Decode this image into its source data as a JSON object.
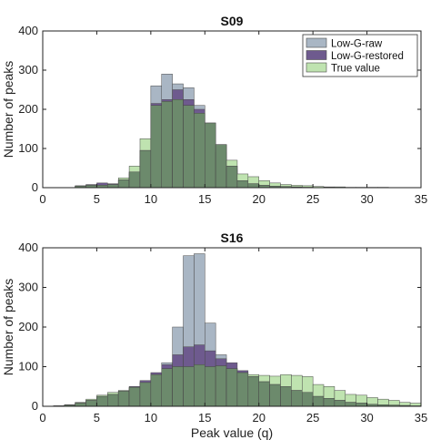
{
  "colors": {
    "raw": "#a9b6c4",
    "restored": "#6e5a8e",
    "true": "#bfe3b0",
    "overlap": "#6c8a6c",
    "edge": "#4a4a4a"
  },
  "chart_data": [
    {
      "type": "bar",
      "title": "S09",
      "xlabel": "",
      "ylabel": "Number of peaks",
      "xlim": [
        0,
        35
      ],
      "ylim": [
        0,
        400
      ],
      "xticks": [
        0,
        5,
        10,
        15,
        20,
        25,
        30,
        35
      ],
      "yticks": [
        0,
        100,
        200,
        300,
        400
      ],
      "grid": false,
      "legend_position": "top-right",
      "legend": [
        "Low-G-raw",
        "Low-G-restored",
        "True value"
      ],
      "bin_width": 1,
      "bin_start": 0,
      "series": [
        {
          "name": "Low-G-raw",
          "values": [
            0,
            0,
            0,
            3,
            5,
            6,
            6,
            20,
            35,
            80,
            260,
            290,
            265,
            255,
            210,
            165,
            110,
            55,
            18,
            8,
            4,
            2,
            1,
            1,
            0,
            0,
            0,
            0,
            0,
            0,
            0,
            0,
            0,
            0,
            0
          ]
        },
        {
          "name": "Low-G-restored",
          "values": [
            0,
            0,
            0,
            5,
            8,
            12,
            10,
            18,
            40,
            95,
            215,
            225,
            250,
            225,
            200,
            160,
            90,
            45,
            18,
            10,
            6,
            4,
            3,
            2,
            1,
            0,
            1,
            0,
            0,
            0,
            0,
            0,
            0,
            0,
            0
          ]
        },
        {
          "name": "True value",
          "values": [
            0,
            0,
            0,
            4,
            6,
            6,
            8,
            25,
            55,
            125,
            210,
            220,
            225,
            210,
            190,
            165,
            110,
            70,
            35,
            28,
            18,
            12,
            8,
            6,
            5,
            3,
            2,
            2,
            1,
            1,
            1,
            1,
            0,
            0,
            0
          ]
        }
      ]
    },
    {
      "type": "bar",
      "title": "S16",
      "xlabel": "Peak value (q)",
      "ylabel": "Number of peaks",
      "xlim": [
        0,
        35
      ],
      "ylim": [
        0,
        400
      ],
      "xticks": [
        0,
        5,
        10,
        15,
        20,
        25,
        30,
        35
      ],
      "yticks": [
        0,
        100,
        200,
        300,
        400
      ],
      "grid": false,
      "legend_position": "",
      "bin_width": 1,
      "bin_start": 0,
      "series": [
        {
          "name": "Low-G-raw",
          "values": [
            0,
            1,
            4,
            8,
            15,
            25,
            30,
            35,
            45,
            50,
            70,
            110,
            200,
            380,
            385,
            210,
            130,
            90,
            60,
            35,
            25,
            20,
            15,
            10,
            8,
            5,
            4,
            3,
            2,
            2,
            1,
            1,
            0,
            0,
            0
          ]
        },
        {
          "name": "Low-G-restored",
          "values": [
            0,
            1,
            3,
            8,
            12,
            20,
            28,
            38,
            50,
            65,
            85,
            105,
            130,
            150,
            155,
            140,
            120,
            110,
            90,
            75,
            62,
            55,
            50,
            40,
            35,
            25,
            20,
            15,
            10,
            8,
            5,
            4,
            3,
            2,
            1
          ]
        },
        {
          "name": "True value",
          "values": [
            0,
            1,
            3,
            10,
            18,
            28,
            35,
            40,
            48,
            60,
            80,
            95,
            100,
            100,
            105,
            100,
            102,
            95,
            85,
            80,
            78,
            76,
            80,
            78,
            75,
            55,
            50,
            40,
            30,
            28,
            22,
            18,
            15,
            10,
            8
          ]
        }
      ]
    }
  ]
}
